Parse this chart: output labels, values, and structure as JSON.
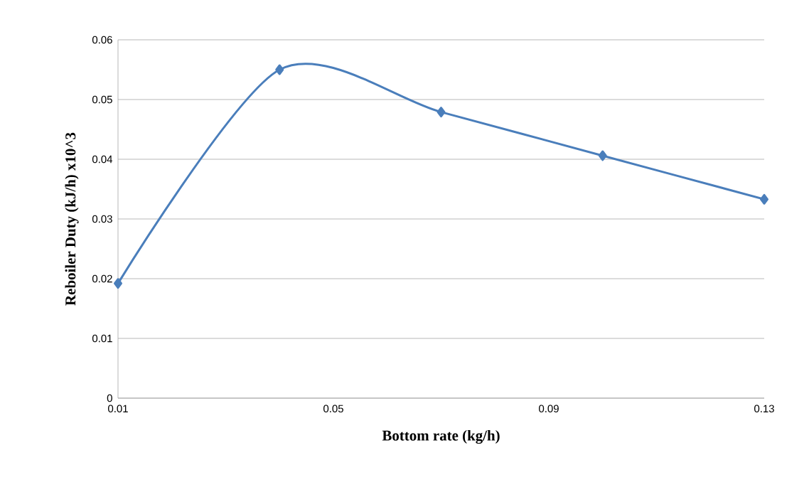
{
  "chart_data": {
    "type": "line",
    "xlabel": "Bottom rate (kg/h)",
    "ylabel": "Reboiler Duty (kJ/h) x10^3",
    "x": [
      0.01,
      0.04,
      0.07,
      0.1,
      0.13
    ],
    "series": [
      {
        "color": "#4a7ebb",
        "values": [
          0.0192,
          0.055,
          0.0479,
          0.0406,
          0.0333
        ]
      }
    ],
    "xlim": [
      0.01,
      0.13
    ],
    "xticks": [
      0.01,
      0.05,
      0.09,
      0.13
    ],
    "ylim": [
      0,
      0.06
    ],
    "yticks": [
      0,
      0.01,
      0.02,
      0.03,
      0.04,
      0.05,
      0.06
    ],
    "grid": "y",
    "marker": "diamond",
    "line_style": "solid"
  }
}
